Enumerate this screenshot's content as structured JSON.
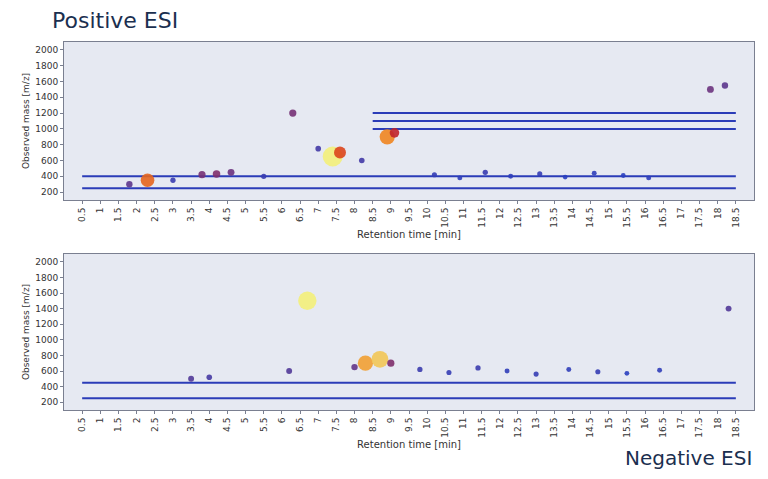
{
  "chart_data": [
    {
      "type": "scatter",
      "title": "Positive ESI",
      "x_label": "Retention time [min]",
      "y_label": "Observed mass [m/z]",
      "xlim": [
        0,
        19
      ],
      "xticks": [
        0.5,
        1,
        1.5,
        2,
        2.5,
        3,
        3.5,
        4,
        4.5,
        5,
        5.5,
        6,
        6.5,
        7,
        7.5,
        8,
        8.5,
        9,
        9.5,
        10,
        10.5,
        11,
        11.5,
        12,
        12.5,
        13,
        13.5,
        14,
        14.5,
        15,
        15.5,
        16,
        16.5,
        17,
        17.5,
        18,
        18.5
      ],
      "ylim": [
        100,
        2100
      ],
      "yticks": [
        200,
        400,
        600,
        800,
        1000,
        1200,
        1400,
        1600,
        1800,
        2000
      ],
      "grid": false,
      "peaks": {
        "x": [
          1.8,
          2.3,
          3.0,
          3.8,
          4.2,
          4.6,
          5.5,
          6.3,
          7.0,
          7.4,
          7.6,
          8.2,
          8.9,
          9.1,
          10.2,
          10.9,
          11.6,
          12.3,
          13.1,
          13.8,
          14.6,
          15.4,
          16.1,
          17.8,
          18.2
        ],
        "y": [
          300,
          350,
          350,
          420,
          430,
          450,
          400,
          1200,
          750,
          650,
          700,
          600,
          900,
          950,
          420,
          380,
          450,
          400,
          430,
          390,
          440,
          410,
          380,
          1500,
          1550
        ],
        "intensity": [
          15,
          60,
          8,
          20,
          22,
          18,
          8,
          20,
          10,
          100,
          50,
          10,
          70,
          35,
          7,
          6,
          8,
          6,
          7,
          5,
          6,
          5,
          6,
          18,
          15
        ]
      },
      "traces": [
        {
          "x": [
            0.5,
            18.5
          ],
          "y": 250,
          "color": "#2b3cb8"
        },
        {
          "x": [
            0.5,
            18.5
          ],
          "y": 400,
          "color": "#2b3cb8"
        },
        {
          "x": [
            8.5,
            18.5
          ],
          "y": 1000,
          "color": "#2b3cb8"
        },
        {
          "x": [
            8.5,
            18.5
          ],
          "y": 1100,
          "color": "#2b3cb8"
        },
        {
          "x": [
            8.5,
            18.5
          ],
          "y": 1200,
          "color": "#2b3cb8"
        }
      ]
    },
    {
      "type": "scatter",
      "title": "Negative ESI",
      "x_label": "Retention time [min]",
      "y_label": "Observed mass [m/z]",
      "xlim": [
        0,
        19
      ],
      "xticks": [
        0.5,
        1,
        1.5,
        2,
        2.5,
        3,
        3.5,
        4,
        4.5,
        5,
        5.5,
        6,
        6.5,
        7,
        7.5,
        8,
        8.5,
        9,
        9.5,
        10,
        10.5,
        11,
        11.5,
        12,
        12.5,
        13,
        13.5,
        14,
        14.5,
        15,
        15.5,
        16,
        16.5,
        17,
        17.5,
        18,
        18.5
      ],
      "ylim": [
        100,
        2100
      ],
      "yticks": [
        200,
        400,
        600,
        800,
        1000,
        1200,
        1400,
        1600,
        1800,
        2000
      ],
      "grid": false,
      "peaks": {
        "x": [
          3.5,
          4.0,
          6.2,
          6.7,
          8.0,
          8.3,
          8.7,
          9.0,
          9.8,
          10.6,
          11.4,
          12.2,
          13.0,
          13.9,
          14.7,
          15.5,
          16.4,
          18.3
        ],
        "y": [
          500,
          520,
          600,
          1500,
          650,
          700,
          750,
          700,
          620,
          580,
          640,
          600,
          560,
          620,
          590,
          570,
          610,
          1400
        ],
        "intensity": [
          12,
          10,
          12,
          90,
          15,
          70,
          80,
          20,
          8,
          7,
          8,
          6,
          7,
          6,
          7,
          5,
          6,
          12
        ]
      },
      "traces": [
        {
          "x": [
            0.5,
            18.5
          ],
          "y": 250,
          "color": "#2b3cb8"
        },
        {
          "x": [
            0.5,
            18.5
          ],
          "y": 450,
          "color": "#2b3cb8"
        }
      ]
    }
  ]
}
